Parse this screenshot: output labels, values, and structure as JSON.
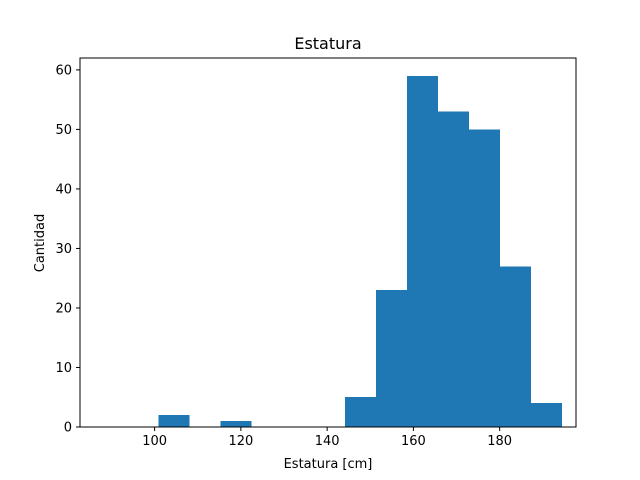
{
  "chart_data": {
    "type": "bar",
    "title": "Estatura",
    "xlabel": "Estatura [cm]",
    "ylabel": "Cantidad",
    "xlim": [
      82.7,
      197.7
    ],
    "ylim": [
      0,
      62
    ],
    "xticks": [
      100,
      120,
      140,
      160,
      180
    ],
    "yticks": [
      0,
      10,
      20,
      30,
      40,
      50,
      60
    ],
    "bar_color": "#1f77b4",
    "bins": [
      {
        "x0": 86.5,
        "x1": 93.7,
        "count": 0
      },
      {
        "x0": 93.7,
        "x1": 100.9,
        "count": 0
      },
      {
        "x0": 100.9,
        "x1": 108.1,
        "count": 2
      },
      {
        "x0": 108.1,
        "x1": 115.3,
        "count": 0
      },
      {
        "x0": 115.3,
        "x1": 122.5,
        "count": 1
      },
      {
        "x0": 122.5,
        "x1": 129.7,
        "count": 0
      },
      {
        "x0": 129.7,
        "x1": 136.9,
        "count": 0
      },
      {
        "x0": 136.9,
        "x1": 144.1,
        "count": 0
      },
      {
        "x0": 144.1,
        "x1": 151.3,
        "count": 5
      },
      {
        "x0": 151.3,
        "x1": 158.5,
        "count": 23
      },
      {
        "x0": 158.5,
        "x1": 165.7,
        "count": 59
      },
      {
        "x0": 165.7,
        "x1": 172.9,
        "count": 53
      },
      {
        "x0": 172.9,
        "x1": 180.1,
        "count": 50
      },
      {
        "x0": 180.1,
        "x1": 187.3,
        "count": 27
      },
      {
        "x0": 187.3,
        "x1": 194.5,
        "count": 4
      }
    ]
  }
}
